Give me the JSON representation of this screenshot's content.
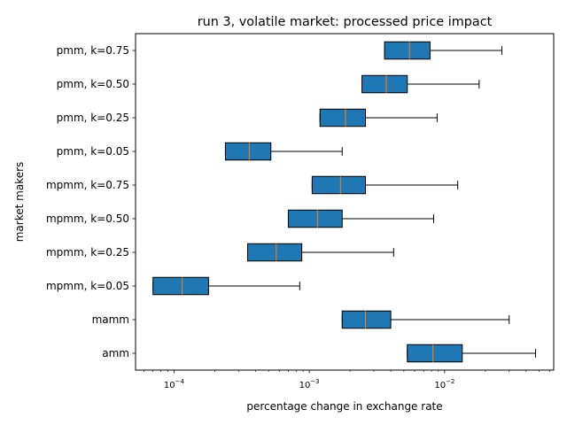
{
  "chart_data": {
    "type": "box",
    "orientation": "horizontal",
    "title": "run 3, volatile market: processed price impact",
    "xlabel": "percentage change in exchange rate",
    "ylabel": "market makers",
    "xscale": "log",
    "xlim": [
      5.2e-05,
      0.064
    ],
    "xticks": [
      {
        "value": 0.0001,
        "base": "10",
        "exp": "−4"
      },
      {
        "value": 0.001,
        "base": "10",
        "exp": "−3"
      },
      {
        "value": 0.01,
        "base": "10",
        "exp": "−2"
      }
    ],
    "box_color": "#1f77b4",
    "median_color": "#ff7f0e",
    "boxes": [
      {
        "label": "pmm, k=0.75",
        "q1": 0.0036,
        "median": 0.0055,
        "q3": 0.0078,
        "whisker_low": 0.0036,
        "whisker_high": 0.0265
      },
      {
        "label": "pmm, k=0.50",
        "q1": 0.00245,
        "median": 0.0037,
        "q3": 0.0053,
        "whisker_low": 0.00245,
        "whisker_high": 0.018
      },
      {
        "label": "pmm, k=0.25",
        "q1": 0.0012,
        "median": 0.00185,
        "q3": 0.0026,
        "whisker_low": 0.0012,
        "whisker_high": 0.0088
      },
      {
        "label": "pmm, k=0.05",
        "q1": 0.00024,
        "median": 0.00036,
        "q3": 0.00052,
        "whisker_low": 0.00024,
        "whisker_high": 0.00175
      },
      {
        "label": "mpmm, k=0.75",
        "q1": 0.00105,
        "median": 0.0017,
        "q3": 0.0026,
        "whisker_low": 0.00105,
        "whisker_high": 0.0125
      },
      {
        "label": "mpmm, k=0.50",
        "q1": 0.0007,
        "median": 0.00115,
        "q3": 0.00175,
        "whisker_low": 0.0007,
        "whisker_high": 0.0083
      },
      {
        "label": "mpmm, k=0.25",
        "q1": 0.00035,
        "median": 0.00057,
        "q3": 0.00088,
        "whisker_low": 0.00035,
        "whisker_high": 0.0042
      },
      {
        "label": "mpmm, k=0.05",
        "q1": 7e-05,
        "median": 0.000115,
        "q3": 0.00018,
        "whisker_low": 7e-05,
        "whisker_high": 0.00085
      },
      {
        "label": "mamm",
        "q1": 0.00175,
        "median": 0.0026,
        "q3": 0.004,
        "whisker_low": 0.00175,
        "whisker_high": 0.03
      },
      {
        "label": "amm",
        "q1": 0.0053,
        "median": 0.0082,
        "q3": 0.0135,
        "whisker_low": 0.0053,
        "whisker_high": 0.047
      }
    ]
  }
}
